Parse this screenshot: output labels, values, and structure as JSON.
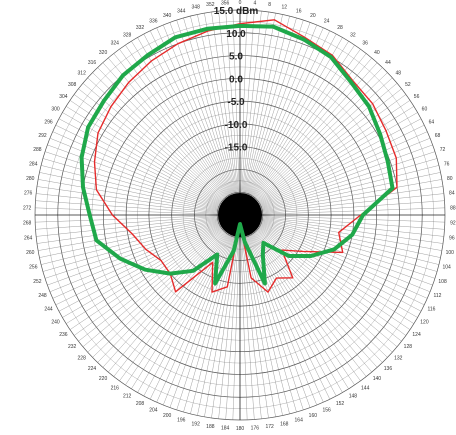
{
  "chart_data": {
    "type": "polar-line",
    "unit": "dBm",
    "rings": [
      15.0,
      10.0,
      5.0,
      0.0,
      -5.0,
      -10.0,
      -15.0
    ],
    "ring_labels": [
      "15.0 dBm",
      "10.0",
      "5.0",
      "0.0",
      "-5.0",
      "-10.0",
      "-15.0"
    ],
    "r_range": [
      -30,
      15
    ],
    "angle_labels": [
      "0",
      "4",
      "8",
      "12",
      "16",
      "20",
      "24",
      "28",
      "32",
      "36",
      "40",
      "44",
      "48",
      "52",
      "56",
      "60",
      "64",
      "68",
      "72",
      "76",
      "80",
      "84",
      "88",
      "92",
      "96",
      "100",
      "104",
      "108",
      "112",
      "116",
      "120",
      "124",
      "128",
      "132",
      "136",
      "140",
      "144",
      "148",
      "152",
      "156",
      "160",
      "164",
      "168",
      "172",
      "176",
      "180",
      "184",
      "188",
      "192",
      "196",
      "200",
      "204",
      "208",
      "212",
      "216",
      "220",
      "224",
      "228",
      "232",
      "236",
      "240",
      "244",
      "248",
      "252",
      "256",
      "260",
      "264",
      "268",
      "272",
      "276",
      "280",
      "284",
      "288",
      "292",
      "296",
      "300",
      "304",
      "308",
      "312",
      "316",
      "320",
      "324",
      "328",
      "332",
      "336",
      "340",
      "344",
      "348",
      "352",
      "356"
    ],
    "series": [
      {
        "color": "#1fa84a",
        "angles": [
          0,
          10,
          20,
          30,
          40,
          50,
          60,
          70,
          80,
          90,
          100,
          110,
          120,
          130,
          140,
          150,
          160,
          170,
          180,
          190,
          200,
          210,
          220,
          230,
          240,
          250,
          260,
          270,
          280,
          290,
          300,
          310,
          320,
          330,
          340,
          350
        ],
        "values": [
          11.5,
          12.0,
          11.0,
          10.0,
          8.0,
          7.0,
          5.5,
          4.5,
          4.0,
          -3.0,
          -5.0,
          -8.0,
          -12.0,
          -16.0,
          -22.0,
          -20.0,
          -14.0,
          -24.0,
          -28.0,
          -22.0,
          -14.0,
          -20.0,
          -14.0,
          -10.0,
          -6.0,
          -2.0,
          2.0,
          3.0,
          5.0,
          7.0,
          8.5,
          9.0,
          10.0,
          10.5,
          11.5,
          11.5
        ]
      },
      {
        "color": "#e52b2b",
        "angles": [
          0,
          10,
          20,
          30,
          40,
          50,
          60,
          70,
          80,
          90,
          100,
          110,
          120,
          130,
          140,
          150,
          160,
          170,
          180,
          190,
          200,
          210,
          220,
          230,
          240,
          250,
          260,
          270,
          280,
          290,
          300,
          310,
          320,
          330,
          340,
          350
        ],
        "values": [
          12.0,
          13.5,
          11.5,
          10.5,
          8.5,
          8.0,
          7.0,
          6.5,
          5.0,
          -3.5,
          -8.0,
          -6.0,
          -14.0,
          -18.0,
          -12.0,
          -14.0,
          -12.0,
          -16.0,
          -28.0,
          -14.0,
          -12.0,
          -18.0,
          -8.0,
          -10.0,
          -10.0,
          -8.0,
          -6.0,
          -2.0,
          2.0,
          4.0,
          6.0,
          7.0,
          8.0,
          9.0,
          10.0,
          11.0
        ]
      }
    ],
    "grid": true
  }
}
